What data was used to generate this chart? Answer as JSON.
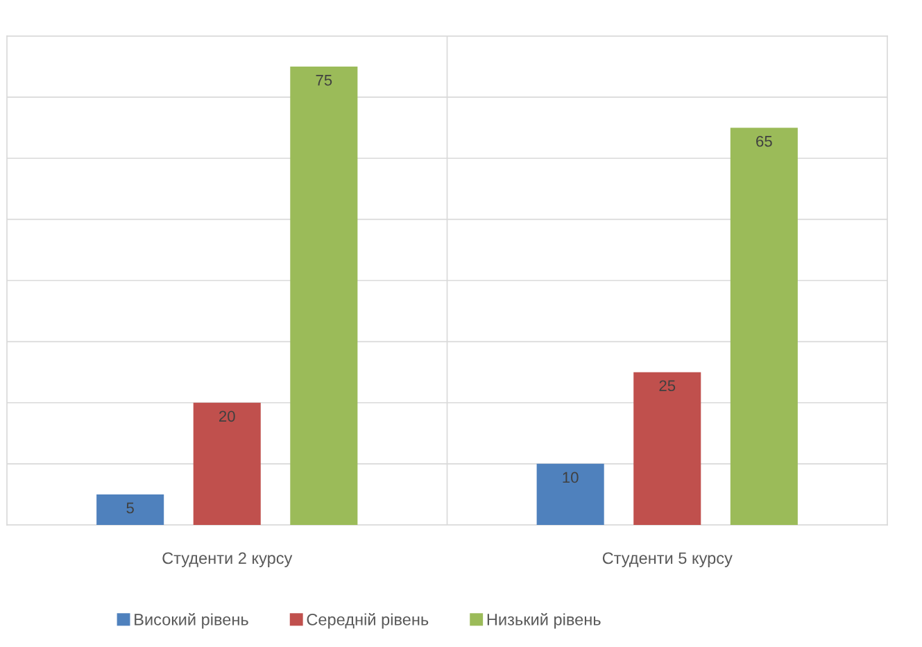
{
  "chart_data": {
    "type": "bar",
    "categories": [
      "Студенти 2 курсу",
      "Студенти 5 курсу"
    ],
    "series": [
      {
        "name": "Високий рівень",
        "color": "#4f81bd",
        "values": [
          5,
          10
        ]
      },
      {
        "name": "Середній рівень",
        "color": "#c0504d",
        "values": [
          20,
          25
        ]
      },
      {
        "name": "Низький рівень",
        "color": "#9bbb59",
        "values": [
          75,
          65
        ]
      }
    ],
    "ylim": [
      0,
      80
    ],
    "yticks": [
      {
        "value": 0,
        "label": null
      },
      {
        "value": 10,
        "label": null
      },
      {
        "value": 20,
        "label": null
      },
      {
        "value": 30,
        "label": null
      },
      {
        "value": 40,
        "label": null
      },
      {
        "value": 50,
        "label": null
      },
      {
        "value": 60,
        "label": null
      },
      {
        "value": 70,
        "label": null
      },
      {
        "value": 80,
        "label": null
      }
    ],
    "tick_labels": "x",
    "grid": true,
    "legend": "bottom",
    "data_labels": true
  }
}
